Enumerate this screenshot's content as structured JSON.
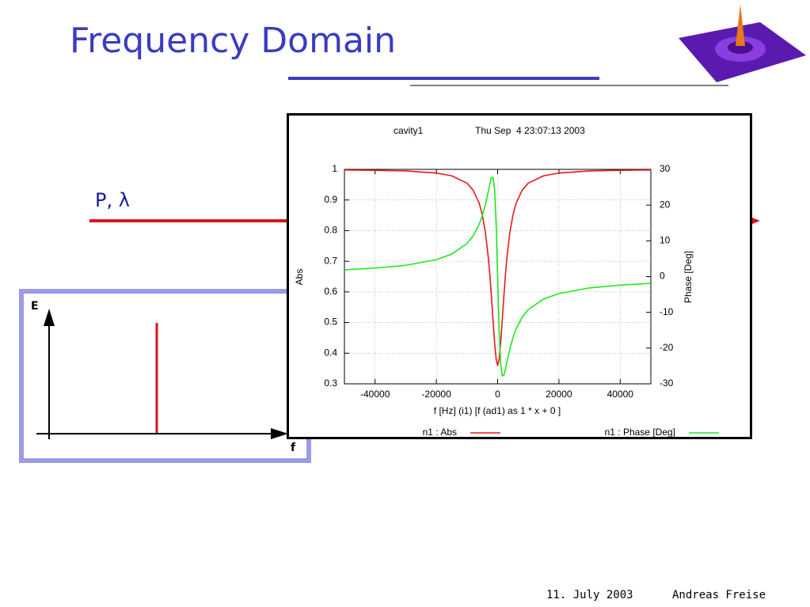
{
  "slide": {
    "title": "Frequency Domain",
    "beam_label": "P, λ",
    "diagram": {
      "y_label": "E",
      "x_label": "f"
    },
    "footer": {
      "date": "11. July 2003",
      "author": "Andreas Freise"
    }
  },
  "chart_data": {
    "type": "line",
    "title": "cavity1",
    "subtitle": "Thu Sep  4 23:07:13 2003",
    "xlabel": "f [Hz] (i1) [f (ad1) as 1 * x + 0 ]",
    "ylabel": "Abs",
    "y2label": "Phase [Deg]",
    "x": [
      -50000,
      -40000,
      -30000,
      -20000,
      -15000,
      -10000,
      -8000,
      -6000,
      -5000,
      -4000,
      -3000,
      -2500,
      -2000,
      -1500,
      -1000,
      -500,
      0,
      500,
      1000,
      1500,
      2000,
      2500,
      3000,
      4000,
      5000,
      6000,
      8000,
      10000,
      15000,
      20000,
      30000,
      40000,
      50000
    ],
    "series": [
      {
        "name": "n1 : Abs",
        "color": "#e8191a",
        "axis": "y",
        "values": [
          0.998,
          0.997,
          0.995,
          0.988,
          0.979,
          0.955,
          0.932,
          0.889,
          0.851,
          0.795,
          0.708,
          0.65,
          0.581,
          0.507,
          0.435,
          0.381,
          0.36,
          0.381,
          0.435,
          0.507,
          0.581,
          0.65,
          0.708,
          0.795,
          0.851,
          0.889,
          0.932,
          0.955,
          0.979,
          0.988,
          0.995,
          0.997,
          0.998
        ]
      },
      {
        "name": "n1 : Phase [Deg]",
        "color": "#1ee81a",
        "axis": "y2",
        "values": [
          1.9,
          2.38,
          3.16,
          4.73,
          6.27,
          9.25,
          11.38,
          14.68,
          17.07,
          20.16,
          24.02,
          26.04,
          27.63,
          27.78,
          24.47,
          15.16,
          0,
          -15.16,
          -24.47,
          -27.78,
          -27.63,
          -26.04,
          -24.02,
          -20.16,
          -17.07,
          -14.68,
          -11.38,
          -9.25,
          -6.27,
          -4.73,
          -3.16,
          -2.38,
          -1.9
        ]
      }
    ],
    "xlim": [
      -50000,
      50000
    ],
    "xticks": [
      -40000,
      -20000,
      0,
      20000,
      40000
    ],
    "ylim": [
      0.3,
      1
    ],
    "yticks": [
      0.3,
      0.4,
      0.5,
      0.6,
      0.7,
      0.8,
      0.9,
      1
    ],
    "y2lim": [
      -30,
      30
    ],
    "y2ticks": [
      -30,
      -20,
      -10,
      0,
      10,
      20,
      30
    ],
    "grid": true,
    "legend": "bottom"
  }
}
